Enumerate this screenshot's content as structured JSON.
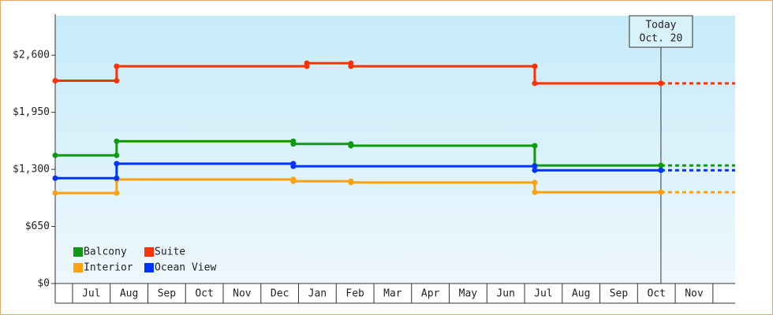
{
  "chart_data": {
    "type": "step-line",
    "categories": [
      "Jul",
      "Aug",
      "Sep",
      "Oct",
      "Nov",
      "Dec",
      "Jan",
      "Feb",
      "Mar",
      "Apr",
      "May",
      "Jun",
      "Jul",
      "Aug",
      "Sep",
      "Oct",
      "Nov"
    ],
    "xlim": [
      -0.46,
      17.59
    ],
    "ylim": [
      0,
      3050
    ],
    "yticks": [
      {
        "value": 0,
        "label": "$0"
      },
      {
        "value": 650,
        "label": "$650"
      },
      {
        "value": 1300,
        "label": "$1,300"
      },
      {
        "value": 1950,
        "label": "$1,950"
      },
      {
        "value": 2600,
        "label": "$2,600"
      }
    ],
    "annotation": {
      "text": "Today",
      "date": "Oct. 20",
      "x": 15.62
    },
    "legend": "bottom-left",
    "series": [
      {
        "name": "Balcony",
        "color": "#119911",
        "x": [
          -0.46,
          1.17,
          5.86,
          7.39,
          12.27,
          15.62
        ],
        "values": [
          1460,
          1620,
          1590,
          1570,
          1345,
          1345
        ]
      },
      {
        "name": "Suite",
        "color": "#ff3300",
        "x": [
          -0.46,
          1.17,
          6.22,
          7.39,
          12.27,
          15.62
        ],
        "values": [
          2310,
          2475,
          2510,
          2475,
          2280,
          2280
        ]
      },
      {
        "name": "Interior",
        "color": "#ffa010",
        "x": [
          -0.46,
          1.17,
          5.86,
          7.39,
          12.27,
          15.62
        ],
        "values": [
          1030,
          1185,
          1165,
          1150,
          1040,
          1040
        ]
      },
      {
        "name": "Ocean View",
        "color": "#0033ff",
        "x": [
          -0.46,
          1.17,
          5.86,
          12.27,
          15.62
        ],
        "values": [
          1200,
          1365,
          1335,
          1290,
          1290
        ]
      }
    ]
  }
}
